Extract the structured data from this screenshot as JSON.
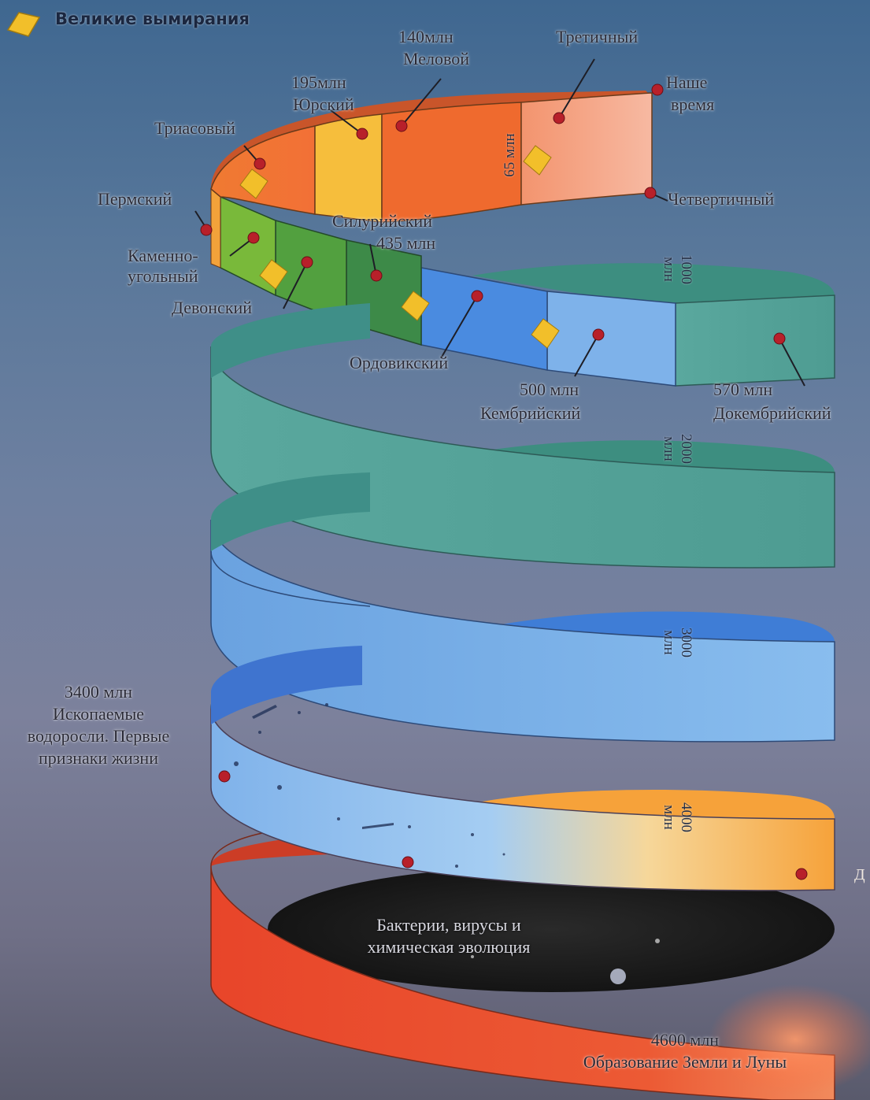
{
  "legend": {
    "title": "Великие вымирания",
    "icon": "extinction-diamond-icon"
  },
  "periods": {
    "tertiary": "Третичный",
    "cretaceous_time": "140млн",
    "cretaceous": "Меловой",
    "jurassic_time": "195млн",
    "jurassic": "Юрский",
    "triassic": "Триасовый",
    "now_line1": "Наше",
    "now_line2": "время",
    "quaternary": "Четвертичный",
    "permian": "Пермский",
    "carboniferous_line1": "Каменно-",
    "carboniferous_line2": "угольный",
    "devonian": "Девонский",
    "silurian": "Силурийский",
    "silurian_time": "435 млн",
    "ordovician": "Ордовикский",
    "cambrian_time": "500 млн",
    "cambrian": "Кембрийский",
    "precambrian_time": "570 млн",
    "precambrian": "Докембрийский"
  },
  "band_marks": {
    "m65": "65 млн",
    "m1000": "1000\nмлн",
    "m2000": "2000\nмлн",
    "m3000": "3000\nмлн",
    "m4000": "4000\nмлн"
  },
  "events": {
    "life_time": "3400 млн",
    "life_line1": "Ископаемые",
    "life_line2": "водоросли. Первые",
    "life_line3": "признаки жизни",
    "bacteria_line1": "Бактерии, вирусы и",
    "bacteria_line2": "химическая эволюция",
    "earth_time": "4600 млн",
    "earth": "Образование Земли и Луны",
    "cut_text": "Д"
  },
  "colors": {
    "cenozoic_light": "#f4a98e",
    "cretaceous_orange": "#ef6a2e",
    "jurassic_yellow": "#f6be3c",
    "triassic_orange": "#f07a32",
    "paleozoic_green": "#4f9e3e",
    "ordovician_blue": "#4a8be0",
    "cambrian_blue": "#7eb2ea",
    "precambrian_teal": "#4fa79a",
    "archean_blue": "#7ab3ea",
    "hadean_orange": "#f6a23a",
    "hadean_red": "#e8432a",
    "marker_red": "#b8202a",
    "extinction_yellow": "#f2bf2a"
  }
}
